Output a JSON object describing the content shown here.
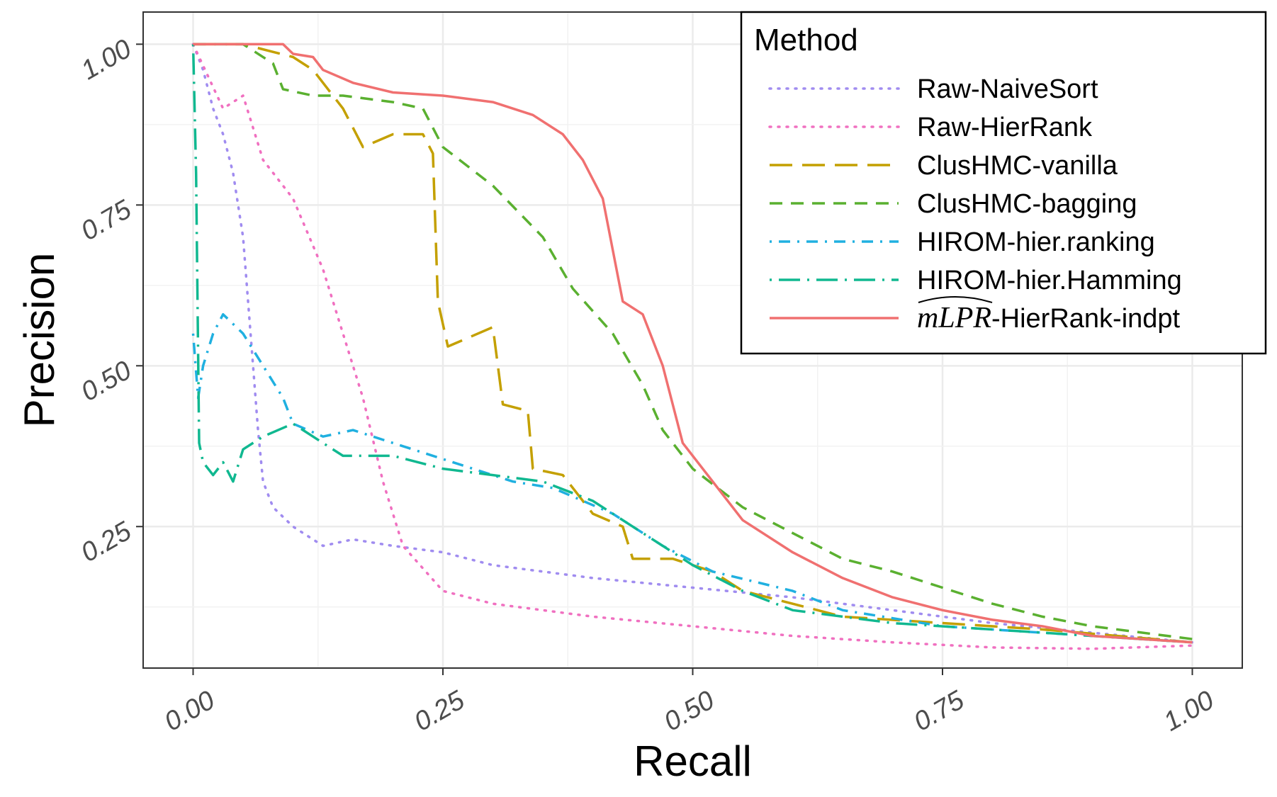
{
  "chart_data": {
    "type": "line",
    "xlabel": "Recall",
    "ylabel": "Precision",
    "xlim": [
      -0.05,
      1.05
    ],
    "ylim": [
      0.03,
      1.05
    ],
    "x_ticks": [
      "0.00",
      "0.25",
      "0.50",
      "0.75",
      "1.00"
    ],
    "y_ticks": [
      "0.25",
      "0.50",
      "0.75",
      "1.00"
    ],
    "x_tick_values": [
      0,
      0.25,
      0.5,
      0.75,
      1.0
    ],
    "y_tick_values": [
      0.25,
      0.5,
      0.75,
      1.0
    ],
    "grid": true,
    "legend": {
      "title": "Method",
      "placement": "top-right"
    },
    "series": [
      {
        "name": "Raw-NaiveSort",
        "color": "#a08cf0",
        "style": "dotted",
        "points": [
          [
            0,
            1.0
          ],
          [
            0.01,
            0.96
          ],
          [
            0.02,
            0.9
          ],
          [
            0.03,
            0.86
          ],
          [
            0.04,
            0.8
          ],
          [
            0.05,
            0.7
          ],
          [
            0.06,
            0.5
          ],
          [
            0.065,
            0.4
          ],
          [
            0.07,
            0.32
          ],
          [
            0.08,
            0.28
          ],
          [
            0.1,
            0.25
          ],
          [
            0.13,
            0.22
          ],
          [
            0.16,
            0.23
          ],
          [
            0.2,
            0.22
          ],
          [
            0.25,
            0.21
          ],
          [
            0.3,
            0.19
          ],
          [
            0.4,
            0.17
          ],
          [
            0.5,
            0.155
          ],
          [
            0.6,
            0.14
          ],
          [
            0.7,
            0.12
          ],
          [
            0.8,
            0.1
          ],
          [
            0.9,
            0.085
          ],
          [
            1.0,
            0.07
          ]
        ]
      },
      {
        "name": "Raw-HierRank",
        "color": "#f070c0",
        "style": "dotted",
        "points": [
          [
            0,
            1.0
          ],
          [
            0.03,
            0.9
          ],
          [
            0.05,
            0.92
          ],
          [
            0.07,
            0.82
          ],
          [
            0.1,
            0.76
          ],
          [
            0.13,
            0.65
          ],
          [
            0.15,
            0.55
          ],
          [
            0.17,
            0.45
          ],
          [
            0.19,
            0.32
          ],
          [
            0.21,
            0.22
          ],
          [
            0.25,
            0.15
          ],
          [
            0.3,
            0.13
          ],
          [
            0.4,
            0.11
          ],
          [
            0.5,
            0.095
          ],
          [
            0.6,
            0.08
          ],
          [
            0.7,
            0.07
          ],
          [
            0.8,
            0.062
          ],
          [
            0.9,
            0.06
          ],
          [
            1.0,
            0.065
          ]
        ]
      },
      {
        "name": "ClusHMC-vanilla",
        "color": "#c4a000",
        "style": "longdash",
        "points": [
          [
            0,
            1.0
          ],
          [
            0.05,
            1.0
          ],
          [
            0.1,
            0.98
          ],
          [
            0.12,
            0.96
          ],
          [
            0.15,
            0.9
          ],
          [
            0.17,
            0.84
          ],
          [
            0.2,
            0.86
          ],
          [
            0.23,
            0.86
          ],
          [
            0.24,
            0.83
          ],
          [
            0.245,
            0.6
          ],
          [
            0.255,
            0.53
          ],
          [
            0.3,
            0.56
          ],
          [
            0.31,
            0.44
          ],
          [
            0.335,
            0.43
          ],
          [
            0.34,
            0.34
          ],
          [
            0.37,
            0.33
          ],
          [
            0.4,
            0.27
          ],
          [
            0.43,
            0.25
          ],
          [
            0.44,
            0.2
          ],
          [
            0.48,
            0.2
          ],
          [
            0.52,
            0.18
          ],
          [
            0.55,
            0.15
          ],
          [
            0.6,
            0.13
          ],
          [
            0.65,
            0.11
          ],
          [
            0.75,
            0.1
          ],
          [
            0.85,
            0.09
          ],
          [
            1.0,
            0.07
          ]
        ]
      },
      {
        "name": "ClusHMC-bagging",
        "color": "#5ab030",
        "style": "dashed",
        "points": [
          [
            0,
            1.0
          ],
          [
            0.05,
            1.0
          ],
          [
            0.08,
            0.97
          ],
          [
            0.09,
            0.93
          ],
          [
            0.12,
            0.92
          ],
          [
            0.15,
            0.92
          ],
          [
            0.2,
            0.91
          ],
          [
            0.23,
            0.9
          ],
          [
            0.25,
            0.84
          ],
          [
            0.3,
            0.78
          ],
          [
            0.35,
            0.7
          ],
          [
            0.38,
            0.62
          ],
          [
            0.42,
            0.55
          ],
          [
            0.45,
            0.47
          ],
          [
            0.47,
            0.4
          ],
          [
            0.5,
            0.34
          ],
          [
            0.55,
            0.28
          ],
          [
            0.6,
            0.24
          ],
          [
            0.65,
            0.2
          ],
          [
            0.7,
            0.18
          ],
          [
            0.75,
            0.155
          ],
          [
            0.8,
            0.13
          ],
          [
            0.85,
            0.11
          ],
          [
            0.9,
            0.095
          ],
          [
            1.0,
            0.075
          ]
        ]
      },
      {
        "name": "HIROM-hier.ranking",
        "color": "#20b0e0",
        "style": "dotdash",
        "points": [
          [
            0,
            0.55
          ],
          [
            0.005,
            0.45
          ],
          [
            0.01,
            0.5
          ],
          [
            0.02,
            0.55
          ],
          [
            0.03,
            0.58
          ],
          [
            0.05,
            0.55
          ],
          [
            0.07,
            0.5
          ],
          [
            0.09,
            0.45
          ],
          [
            0.1,
            0.41
          ],
          [
            0.13,
            0.39
          ],
          [
            0.16,
            0.4
          ],
          [
            0.2,
            0.38
          ],
          [
            0.24,
            0.36
          ],
          [
            0.28,
            0.34
          ],
          [
            0.32,
            0.32
          ],
          [
            0.36,
            0.31
          ],
          [
            0.42,
            0.27
          ],
          [
            0.47,
            0.22
          ],
          [
            0.52,
            0.18
          ],
          [
            0.6,
            0.15
          ],
          [
            0.65,
            0.12
          ],
          [
            0.75,
            0.095
          ],
          [
            0.85,
            0.085
          ],
          [
            1.0,
            0.07
          ]
        ]
      },
      {
        "name": "HIROM-hier.Hamming",
        "color": "#10b890",
        "style": "longdotdash",
        "points": [
          [
            0,
            1.0
          ],
          [
            0.003,
            0.8
          ],
          [
            0.006,
            0.38
          ],
          [
            0.01,
            0.35
          ],
          [
            0.02,
            0.33
          ],
          [
            0.03,
            0.35
          ],
          [
            0.04,
            0.32
          ],
          [
            0.05,
            0.37
          ],
          [
            0.07,
            0.39
          ],
          [
            0.1,
            0.41
          ],
          [
            0.13,
            0.38
          ],
          [
            0.15,
            0.36
          ],
          [
            0.2,
            0.36
          ],
          [
            0.25,
            0.34
          ],
          [
            0.3,
            0.33
          ],
          [
            0.35,
            0.32
          ],
          [
            0.4,
            0.29
          ],
          [
            0.45,
            0.24
          ],
          [
            0.5,
            0.19
          ],
          [
            0.55,
            0.15
          ],
          [
            0.6,
            0.12
          ],
          [
            0.7,
            0.1
          ],
          [
            0.8,
            0.09
          ],
          [
            0.9,
            0.08
          ],
          [
            1.0,
            0.07
          ]
        ]
      },
      {
        "name": "mLPR-HierRank-indpt",
        "color": "#f07070",
        "style": "solid",
        "points": [
          [
            0,
            1.0
          ],
          [
            0.09,
            1.0
          ],
          [
            0.1,
            0.985
          ],
          [
            0.12,
            0.98
          ],
          [
            0.13,
            0.96
          ],
          [
            0.16,
            0.94
          ],
          [
            0.2,
            0.925
          ],
          [
            0.25,
            0.92
          ],
          [
            0.3,
            0.91
          ],
          [
            0.34,
            0.89
          ],
          [
            0.37,
            0.86
          ],
          [
            0.39,
            0.82
          ],
          [
            0.41,
            0.76
          ],
          [
            0.42,
            0.68
          ],
          [
            0.43,
            0.6
          ],
          [
            0.45,
            0.58
          ],
          [
            0.47,
            0.5
          ],
          [
            0.49,
            0.38
          ],
          [
            0.52,
            0.32
          ],
          [
            0.55,
            0.26
          ],
          [
            0.6,
            0.21
          ],
          [
            0.65,
            0.17
          ],
          [
            0.7,
            0.14
          ],
          [
            0.75,
            0.12
          ],
          [
            0.8,
            0.105
          ],
          [
            0.85,
            0.095
          ],
          [
            0.9,
            0.08
          ],
          [
            1.0,
            0.07
          ]
        ]
      }
    ]
  }
}
